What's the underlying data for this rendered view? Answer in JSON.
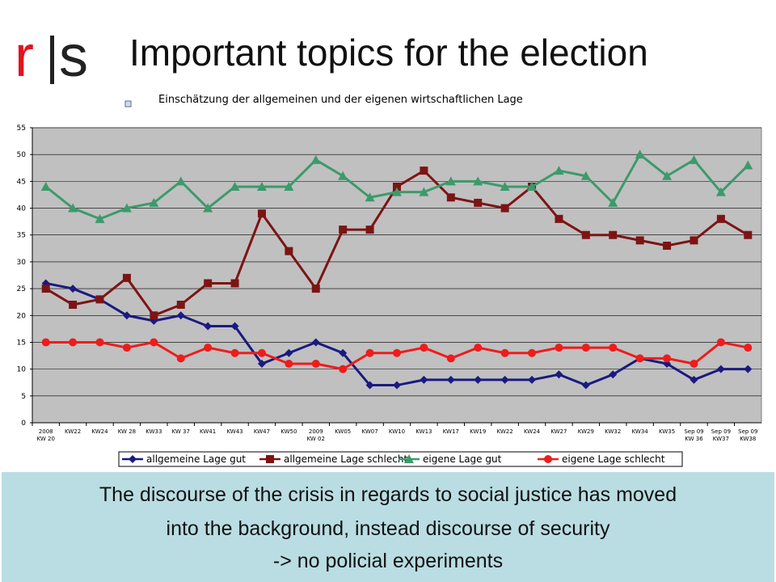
{
  "logo": {
    "letter_left": "r",
    "letter_right": "s"
  },
  "slide_title": "Important  topics for the election",
  "caption": {
    "lines": [
      "The discourse of the crisis in regards to social justice has moved",
      "into the background, instead discourse of security",
      "-> no policial experiments"
    ]
  },
  "chart_data": {
    "type": "line",
    "title": "Einschätzung der allgemeinen und der eigenen wirtschaftlichen Lage",
    "categories": [
      [
        "2008",
        "KW 20"
      ],
      [
        "KW22"
      ],
      [
        "KW24"
      ],
      [
        "KW 28"
      ],
      [
        "KW33"
      ],
      [
        "KW 37"
      ],
      [
        "KW41"
      ],
      [
        "KW43"
      ],
      [
        "KW47"
      ],
      [
        "KW50"
      ],
      [
        "2009",
        "KW 02"
      ],
      [
        "KW05"
      ],
      [
        "KW07"
      ],
      [
        "KW10"
      ],
      [
        "KW13"
      ],
      [
        "KW17"
      ],
      [
        "KW19"
      ],
      [
        "KW22"
      ],
      [
        "KW24"
      ],
      [
        "KW27"
      ],
      [
        "KW29"
      ],
      [
        "KW32"
      ],
      [
        "KW34"
      ],
      [
        "KW35"
      ],
      [
        "Sep 09",
        "KW 36"
      ],
      [
        "Sep 09",
        "KW37"
      ],
      [
        "Sep 09",
        "KW38"
      ]
    ],
    "ylim": [
      0,
      55
    ],
    "yticks": [
      0,
      5,
      10,
      15,
      20,
      25,
      30,
      35,
      40,
      45,
      50,
      55
    ],
    "grid": true,
    "legend_position": "bottom",
    "series": [
      {
        "name": "allgemeine Lage gut",
        "color": "#1a1a80",
        "marker": "diamond",
        "values": [
          26,
          25,
          23,
          20,
          19,
          20,
          18,
          18,
          11,
          13,
          15,
          13,
          7,
          7,
          8,
          8,
          8,
          8,
          8,
          9,
          7,
          9,
          12,
          11,
          8,
          10,
          10
        ]
      },
      {
        "name": "allgemeine Lage schlecht",
        "color": "#7d1414",
        "marker": "square",
        "values": [
          25,
          22,
          23,
          27,
          20,
          22,
          26,
          26,
          39,
          32,
          25,
          36,
          36,
          44,
          47,
          42,
          41,
          40,
          44,
          38,
          35,
          35,
          34,
          33,
          34,
          38,
          35
        ]
      },
      {
        "name": "eigene Lage gut",
        "color": "#3c9a6c",
        "marker": "triangle",
        "values": [
          44,
          40,
          38,
          40,
          41,
          45,
          40,
          44,
          44,
          44,
          49,
          46,
          42,
          43,
          43,
          45,
          45,
          44,
          44,
          47,
          46,
          41,
          50,
          46,
          49,
          43,
          48
        ]
      },
      {
        "name": "eigene Lage schlecht",
        "color": "#ee1c1c",
        "marker": "circle",
        "values": [
          15,
          15,
          15,
          14,
          15,
          12,
          14,
          13,
          13,
          11,
          11,
          10,
          13,
          13,
          14,
          12,
          14,
          13,
          13,
          14,
          14,
          14,
          12,
          12,
          11,
          15,
          14
        ]
      }
    ]
  }
}
